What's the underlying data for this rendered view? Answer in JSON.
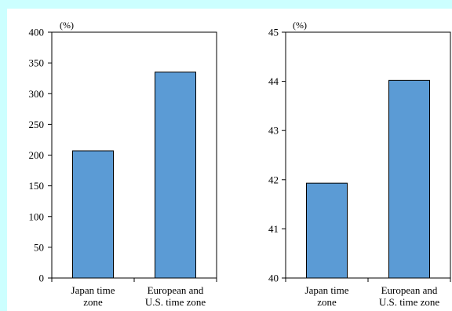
{
  "colors": {
    "background": "#ccffff",
    "panel": "#ffffff",
    "bar_fill": "#5b9bd5",
    "bar_stroke": "#000000"
  },
  "chart_data": [
    {
      "type": "bar",
      "unit_label": "(%)",
      "categories": [
        [
          "Japan time",
          "zone"
        ],
        [
          "European and",
          "U.S. time zone"
        ]
      ],
      "values": [
        207,
        335
      ],
      "ylim": [
        0,
        400
      ],
      "yticks": [
        0,
        50,
        100,
        150,
        200,
        250,
        300,
        350,
        400
      ],
      "grid": false
    },
    {
      "type": "bar",
      "unit_label": "(%)",
      "categories": [
        [
          "Japan time",
          "zone"
        ],
        [
          "European and",
          "U.S. time zone"
        ]
      ],
      "values": [
        41.93,
        44.02
      ],
      "ylim": [
        40,
        45
      ],
      "yticks": [
        40,
        41,
        42,
        43,
        44,
        45
      ],
      "grid": false
    }
  ]
}
